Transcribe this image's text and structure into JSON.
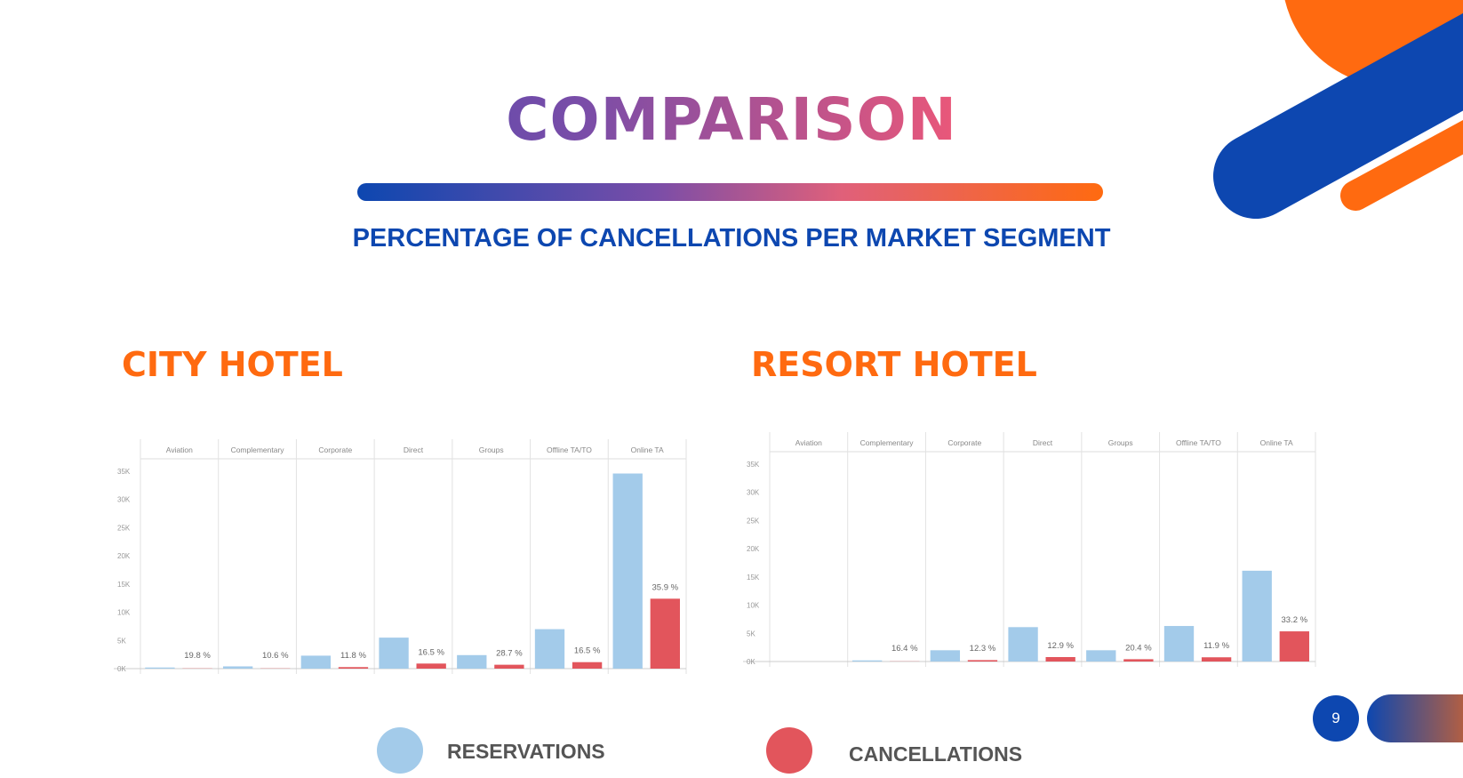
{
  "slide": {
    "title": "COMPARISON",
    "subtitle": "PERCENTAGE OF CANCELLATIONS PER MARKET SEGMENT",
    "page_number": "9"
  },
  "colors": {
    "reservations": "#a3cbea",
    "cancellations": "#e2555c",
    "accent_orange": "#ff6a10",
    "accent_blue": "#0d47b0"
  },
  "legend": {
    "reservations_label": "RESERVATIONS",
    "cancellations_label": "CANCELLATIONS"
  },
  "chart_data": [
    {
      "type": "bar",
      "title": "CITY HOTEL",
      "categories": [
        "Aviation",
        "Complementary",
        "Corporate",
        "Direct",
        "Groups",
        "Offline TA/TO",
        "Online TA"
      ],
      "series": [
        {
          "name": "RESERVATIONS",
          "values": [
            200,
            400,
            2300,
            5500,
            2400,
            7000,
            34600
          ]
        },
        {
          "name": "CANCELLATIONS",
          "values": [
            40,
            40,
            270,
            900,
            690,
            1150,
            12400
          ]
        }
      ],
      "data_labels": [
        "19.8 %",
        "10.6 %",
        "11.8 %",
        "16.5 %",
        "28.7 %",
        "16.5 %",
        "35.9 %"
      ],
      "y_ticks": [
        "0K",
        "5K",
        "10K",
        "15K",
        "20K",
        "25K",
        "30K",
        "35K"
      ],
      "ylim": [
        0,
        35000
      ]
    },
    {
      "type": "bar",
      "title": "RESORT HOTEL",
      "categories": [
        "Aviation",
        "Complementary",
        "Corporate",
        "Direct",
        "Groups",
        "Offline TA/TO",
        "Online TA"
      ],
      "series": [
        {
          "name": "RESERVATIONS",
          "values": [
            0,
            200,
            2000,
            6100,
            2000,
            6300,
            16100
          ]
        },
        {
          "name": "CANCELLATIONS",
          "values": [
            0,
            30,
            250,
            790,
            410,
            750,
            5350
          ]
        }
      ],
      "data_labels": [
        "",
        "16.4 %",
        "12.3 %",
        "12.9 %",
        "20.4 %",
        "11.9 %",
        "33.2 %"
      ],
      "y_ticks": [
        "0K",
        "5K",
        "10K",
        "15K",
        "20K",
        "25K",
        "30K",
        "35K"
      ],
      "ylim": [
        0,
        35000
      ]
    }
  ]
}
